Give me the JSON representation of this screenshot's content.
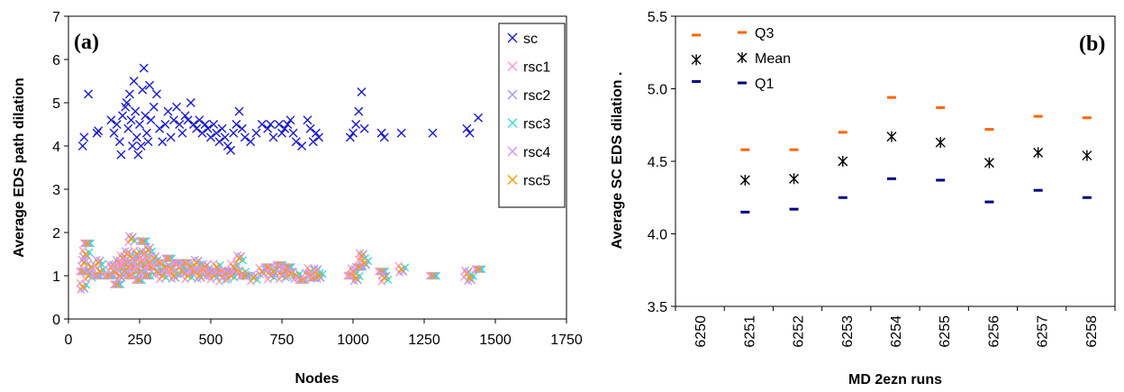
{
  "chart_data": [
    {
      "type": "scatter",
      "panel_label": "(a)",
      "xlabel": "Nodes",
      "ylabel": "Average EDS path dilation",
      "xlim": [
        0,
        1750
      ],
      "ylim": [
        0,
        7
      ],
      "x_ticks": [
        "0",
        "250",
        "500",
        "750",
        "1000",
        "1250",
        "1500",
        "1750"
      ],
      "y_ticks": [
        "0",
        "1",
        "2",
        "3",
        "4",
        "5",
        "6",
        "7"
      ],
      "grid": false,
      "legend_position": "top-right",
      "marker": "x",
      "series": [
        {
          "name": "sc",
          "color": "#1a1acc",
          "points": [
            [
              50,
              4.0
            ],
            [
              55,
              4.2
            ],
            [
              70,
              5.2
            ],
            [
              100,
              4.3
            ],
            [
              105,
              4.35
            ],
            [
              150,
              4.6
            ],
            [
              160,
              4.3
            ],
            [
              170,
              4.5
            ],
            [
              180,
              4.1
            ],
            [
              185,
              3.8
            ],
            [
              190,
              4.7
            ],
            [
              200,
              4.9
            ],
            [
              205,
              5.0
            ],
            [
              210,
              4.4
            ],
            [
              215,
              5.2
            ],
            [
              220,
              4.6
            ],
            [
              225,
              4.0
            ],
            [
              230,
              5.5
            ],
            [
              235,
              4.8
            ],
            [
              240,
              4.2
            ],
            [
              245,
              3.8
            ],
            [
              250,
              4.5
            ],
            [
              255,
              4.0
            ],
            [
              260,
              5.3
            ],
            [
              265,
              5.8
            ],
            [
              270,
              4.7
            ],
            [
              275,
              4.3
            ],
            [
              280,
              4.1
            ],
            [
              285,
              5.4
            ],
            [
              290,
              4.6
            ],
            [
              300,
              4.9
            ],
            [
              310,
              5.2
            ],
            [
              320,
              4.4
            ],
            [
              330,
              4.1
            ],
            [
              340,
              4.5
            ],
            [
              350,
              4.8
            ],
            [
              360,
              4.2
            ],
            [
              370,
              4.6
            ],
            [
              380,
              4.9
            ],
            [
              390,
              4.5
            ],
            [
              400,
              4.3
            ],
            [
              410,
              4.7
            ],
            [
              420,
              4.6
            ],
            [
              430,
              5.0
            ],
            [
              440,
              4.5
            ],
            [
              450,
              4.4
            ],
            [
              460,
              4.6
            ],
            [
              470,
              4.3
            ],
            [
              480,
              4.5
            ],
            [
              490,
              4.4
            ],
            [
              500,
              4.2
            ],
            [
              510,
              4.5
            ],
            [
              520,
              4.3
            ],
            [
              530,
              4.1
            ],
            [
              540,
              4.4
            ],
            [
              550,
              4.2
            ],
            [
              560,
              4.0
            ],
            [
              570,
              3.9
            ],
            [
              580,
              4.3
            ],
            [
              590,
              4.5
            ],
            [
              600,
              4.8
            ],
            [
              610,
              4.4
            ],
            [
              620,
              4.2
            ],
            [
              640,
              4.1
            ],
            [
              660,
              4.3
            ],
            [
              680,
              4.5
            ],
            [
              700,
              4.4
            ],
            [
              710,
              4.5
            ],
            [
              720,
              4.2
            ],
            [
              740,
              4.5
            ],
            [
              750,
              4.3
            ],
            [
              760,
              4.4
            ],
            [
              770,
              4.5
            ],
            [
              780,
              4.6
            ],
            [
              790,
              4.3
            ],
            [
              800,
              4.1
            ],
            [
              820,
              4.0
            ],
            [
              840,
              4.6
            ],
            [
              850,
              4.4
            ],
            [
              860,
              4.1
            ],
            [
              870,
              4.3
            ],
            [
              880,
              4.2
            ],
            [
              990,
              4.2
            ],
            [
              1000,
              4.3
            ],
            [
              1010,
              4.5
            ],
            [
              1020,
              4.8
            ],
            [
              1030,
              5.25
            ],
            [
              1040,
              4.4
            ],
            [
              1100,
              4.3
            ],
            [
              1110,
              4.2
            ],
            [
              1170,
              4.3
            ],
            [
              1280,
              4.3
            ],
            [
              1400,
              4.4
            ],
            [
              1410,
              4.3
            ],
            [
              1440,
              4.65
            ]
          ]
        },
        {
          "name": "rsc1",
          "color": "#ff99cc",
          "points": []
        },
        {
          "name": "rsc2",
          "color": "#9999ff",
          "points": []
        },
        {
          "name": "rsc3",
          "color": "#33dddd",
          "points": []
        },
        {
          "name": "rsc4",
          "color": "#cc99ff",
          "points": []
        },
        {
          "name": "rsc5",
          "color": "#ff9900",
          "note_series_overlap": "rsc1..rsc5 overlap in the band 0.7-1.9",
          "points": []
        }
      ],
      "rsc_band": {
        "names": [
          "rsc1",
          "rsc2",
          "rsc3",
          "rsc4",
          "rsc5"
        ],
        "points": [
          [
            50,
            0.75
          ],
          [
            50,
            1.1
          ],
          [
            55,
            1.3
          ],
          [
            60,
            1.5
          ],
          [
            65,
            1.75
          ],
          [
            70,
            1.0
          ],
          [
            80,
            1.2
          ],
          [
            100,
            1.0
          ],
          [
            105,
            1.3
          ],
          [
            110,
            1.1
          ],
          [
            140,
            1.0
          ],
          [
            150,
            1.2
          ],
          [
            160,
            1.1
          ],
          [
            170,
            0.8
          ],
          [
            175,
            1.3
          ],
          [
            180,
            1.0
          ],
          [
            185,
            1.2
          ],
          [
            190,
            1.4
          ],
          [
            195,
            1.1
          ],
          [
            200,
            1.3
          ],
          [
            205,
            1.5
          ],
          [
            210,
            1.2
          ],
          [
            215,
            1.0
          ],
          [
            220,
            1.85
          ],
          [
            225,
            1.4
          ],
          [
            230,
            1.2
          ],
          [
            235,
            1.1
          ],
          [
            240,
            1.5
          ],
          [
            245,
            0.9
          ],
          [
            250,
            1.3
          ],
          [
            255,
            1.1
          ],
          [
            260,
            1.8
          ],
          [
            265,
            1.5
          ],
          [
            270,
            1.25
          ],
          [
            275,
            1.0
          ],
          [
            280,
            1.6
          ],
          [
            285,
            1.3
          ],
          [
            290,
            1.2
          ],
          [
            300,
            1.4
          ],
          [
            310,
            1.1
          ],
          [
            320,
            1.3
          ],
          [
            330,
            1.0
          ],
          [
            340,
            1.2
          ],
          [
            350,
            1.4
          ],
          [
            360,
            1.15
          ],
          [
            370,
            1.0
          ],
          [
            380,
            1.3
          ],
          [
            390,
            1.2
          ],
          [
            400,
            1.1
          ],
          [
            410,
            1.3
          ],
          [
            420,
            1.0
          ],
          [
            430,
            1.2
          ],
          [
            440,
            1.1
          ],
          [
            450,
            1.3
          ],
          [
            460,
            1.0
          ],
          [
            470,
            1.15
          ],
          [
            480,
            1.2
          ],
          [
            490,
            1.05
          ],
          [
            500,
            1.1
          ],
          [
            510,
            1.0
          ],
          [
            520,
            1.2
          ],
          [
            530,
            1.1
          ],
          [
            540,
            0.95
          ],
          [
            550,
            1.05
          ],
          [
            560,
            1.1
          ],
          [
            570,
            1.0
          ],
          [
            580,
            1.2
          ],
          [
            590,
            1.1
          ],
          [
            600,
            1.4
          ],
          [
            610,
            1.05
          ],
          [
            620,
            1.0
          ],
          [
            650,
            0.95
          ],
          [
            680,
            1.1
          ],
          [
            700,
            1.2
          ],
          [
            710,
            1.0
          ],
          [
            720,
            1.1
          ],
          [
            740,
            1.25
          ],
          [
            750,
            1.0
          ],
          [
            760,
            1.1
          ],
          [
            770,
            1.2
          ],
          [
            780,
            1.05
          ],
          [
            800,
            1.0
          ],
          [
            820,
            0.9
          ],
          [
            840,
            1.0
          ],
          [
            850,
            1.1
          ],
          [
            860,
            0.95
          ],
          [
            870,
            1.1
          ],
          [
            880,
            1.0
          ],
          [
            990,
            1.0
          ],
          [
            1000,
            1.1
          ],
          [
            1010,
            0.95
          ],
          [
            1020,
            1.2
          ],
          [
            1030,
            1.45
          ],
          [
            1040,
            1.3
          ],
          [
            1100,
            1.1
          ],
          [
            1110,
            0.95
          ],
          [
            1170,
            1.15
          ],
          [
            1280,
            1.0
          ],
          [
            1400,
            1.05
          ],
          [
            1410,
            0.95
          ],
          [
            1440,
            1.15
          ]
        ]
      }
    },
    {
      "type": "scatter",
      "panel_label": "(b)",
      "xlabel": "MD 2ezn runs",
      "ylabel": "Average SC EDS dilation .",
      "categories": [
        "6250",
        "6251",
        "6252",
        "6253",
        "6254",
        "6255",
        "6256",
        "6257",
        "6258"
      ],
      "ylim": [
        3.5,
        5.5
      ],
      "y_ticks": [
        "3.5",
        "4.0",
        "4.5",
        "5.0",
        "5.5"
      ],
      "grid": false,
      "legend_position": "top-left",
      "series": [
        {
          "name": "Q3",
          "color": "#ff6600",
          "marker": "dash",
          "values": [
            5.37,
            4.58,
            4.58,
            4.7,
            4.94,
            4.87,
            4.72,
            4.81,
            4.8
          ]
        },
        {
          "name": "Mean",
          "color": "#000000",
          "marker": "asterisk",
          "values": [
            5.2,
            4.37,
            4.38,
            4.5,
            4.67,
            4.63,
            4.49,
            4.56,
            4.54
          ]
        },
        {
          "name": "Q1",
          "color": "#000080",
          "marker": "dash",
          "values": [
            5.05,
            4.15,
            4.17,
            4.25,
            4.38,
            4.37,
            4.22,
            4.3,
            4.25
          ]
        }
      ]
    }
  ]
}
